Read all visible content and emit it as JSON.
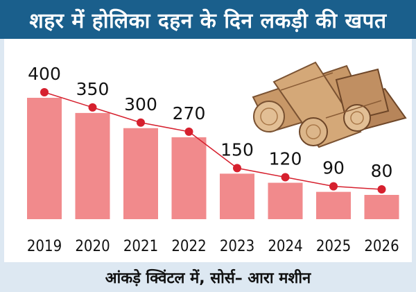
{
  "header": {
    "title": "शहर में होलिका दहन के दिन लकड़ी की खपत"
  },
  "footer": {
    "note": "आंकड़े क्विंटल में, सोर्स– आरा मशीन"
  },
  "colors": {
    "header_bg": "#1a5f8c",
    "bar": "#f18a8c",
    "line": "#d6202e",
    "footer_bg": "#dde8f2"
  },
  "chart_data": {
    "type": "bar",
    "categories": [
      "2019",
      "2020",
      "2021",
      "2022",
      "2023",
      "2024",
      "2025",
      "2026"
    ],
    "values": [
      400,
      350,
      300,
      270,
      150,
      120,
      90,
      80
    ],
    "data_labels": [
      "400",
      "350",
      "300",
      "270",
      "150",
      "120",
      "90",
      "80"
    ],
    "overlay": "line-with-markers",
    "title": "शहर में होलिका दहन के दिन लकड़ी की खपत",
    "xlabel": "",
    "ylabel": "",
    "unit_note": "आंकड़े क्विंटल में, सोर्स– आरा मशीन",
    "ylim": [
      0,
      480
    ],
    "grid": false,
    "legend": "none"
  },
  "illustration": {
    "icon": "wood-logs-icon"
  }
}
